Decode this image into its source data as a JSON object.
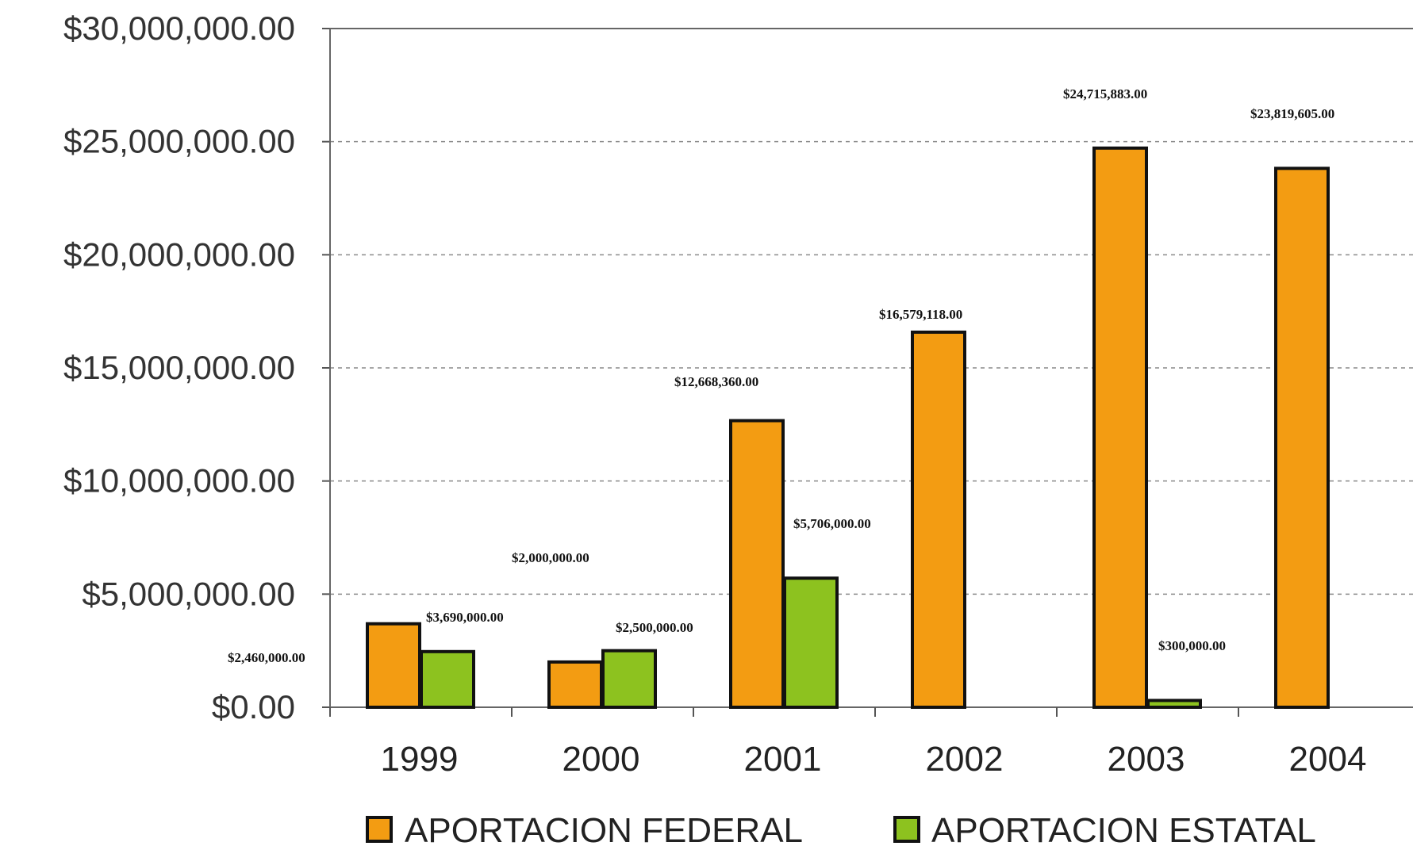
{
  "chart_data": {
    "type": "bar",
    "categories": [
      "1999",
      "2000",
      "2001",
      "2002",
      "2003",
      "2004"
    ],
    "series": [
      {
        "name": "APORTACION FEDERAL",
        "color": "#F39C12",
        "values": [
          3690000,
          2000000,
          12668360,
          16579118,
          24715883,
          23819605
        ],
        "labels": [
          "$3,690,000.00",
          "$2,000,000.00",
          "$12,668,360.00",
          "$16,579,118.00",
          "$24,715,883.00",
          "$23,819,605.00"
        ]
      },
      {
        "name": "APORTACION ESTATAL",
        "color": "#8DC21F",
        "values": [
          2460000,
          2500000,
          5706000,
          0,
          300000,
          0
        ],
        "labels": [
          "$2,460,000.00",
          "$2,500,000.00",
          "$5,706,000.00",
          "",
          "$300,000.00",
          ""
        ]
      }
    ],
    "ylim": [
      0,
      30000000
    ],
    "yticks": [
      0,
      5000000,
      10000000,
      15000000,
      20000000,
      25000000,
      30000000
    ],
    "ytick_labels": [
      "$0.00",
      "$5,000,000.00",
      "$10,000,000.00",
      "$15,000,000.00",
      "$20,000,000.00",
      "$25,000,000.00",
      "$30,000,000.00"
    ],
    "grid": true,
    "legend_position": "bottom",
    "title": "",
    "xlabel": "",
    "ylabel": ""
  }
}
